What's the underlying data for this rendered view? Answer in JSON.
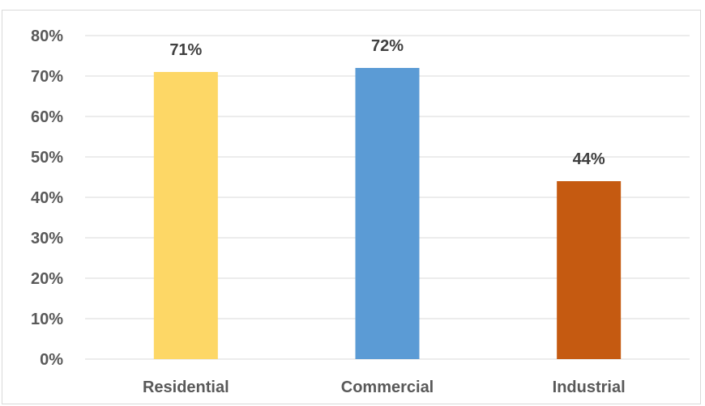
{
  "chart_data": {
    "type": "bar",
    "title": "",
    "xlabel": "",
    "ylabel": "",
    "categories": [
      "Residential",
      "Commercial",
      "Industrial"
    ],
    "values": [
      71,
      72,
      44
    ],
    "data_labels": [
      "71%",
      "72%",
      "44%"
    ],
    "colors": [
      "#FDD766",
      "#5B9BD5",
      "#C55A11"
    ],
    "ylim": [
      0,
      80
    ],
    "yticks": [
      0,
      10,
      20,
      30,
      40,
      50,
      60,
      70,
      80
    ],
    "ytick_labels": [
      "0%",
      "10%",
      "20%",
      "30%",
      "40%",
      "50%",
      "60%",
      "70%",
      "80%"
    ],
    "grid": true,
    "legend": "none"
  }
}
